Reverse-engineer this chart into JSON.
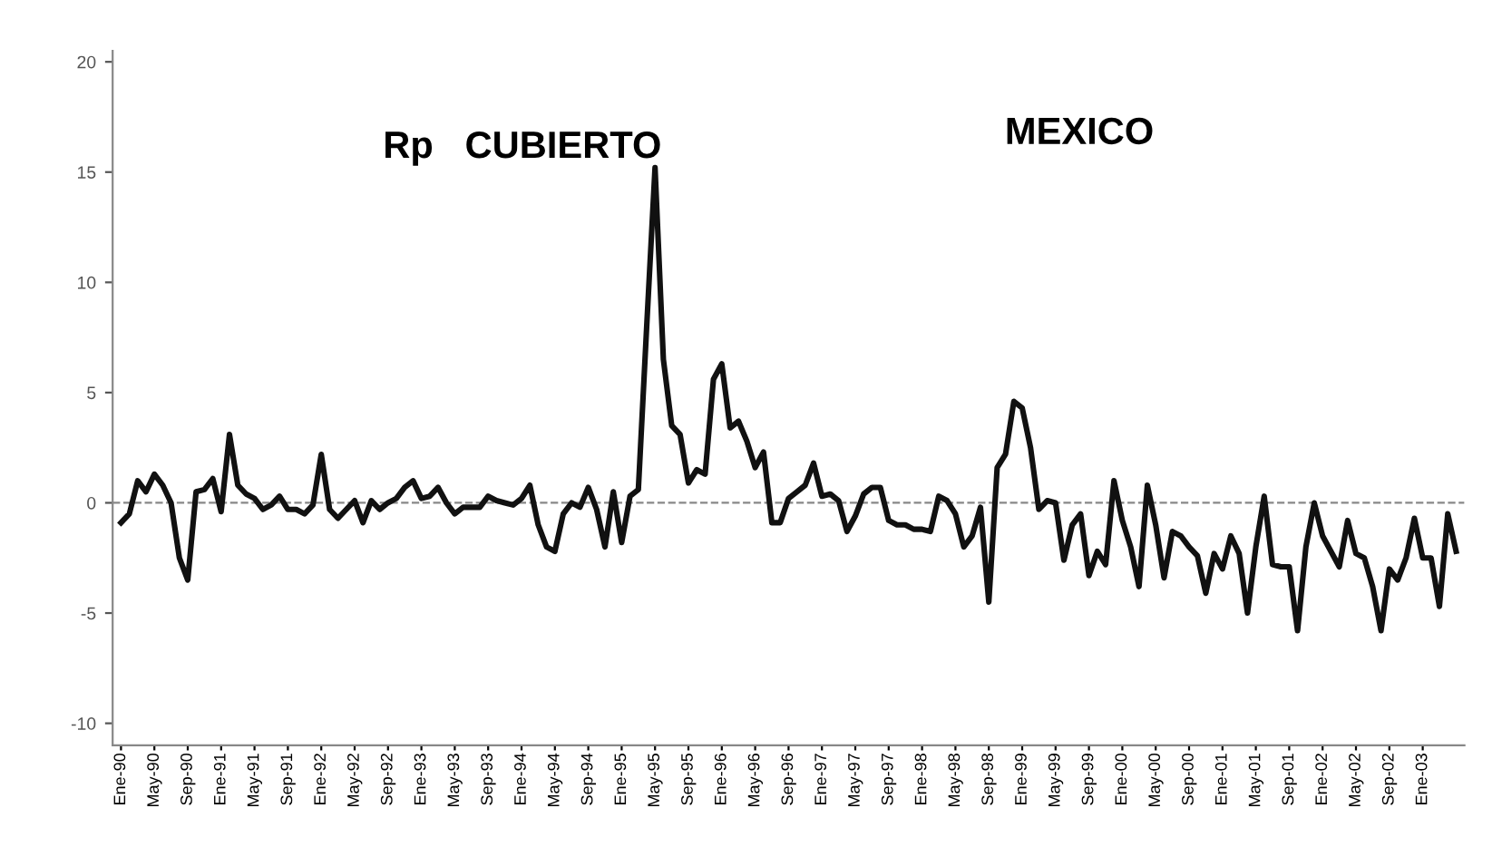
{
  "chart_data": {
    "type": "line",
    "annotations": [
      "Rp   CUBIERTO",
      "MEXICO"
    ],
    "categories": [
      "Ene-90",
      null,
      null,
      null,
      "May-90",
      null,
      null,
      null,
      "Sep-90",
      null,
      null,
      null,
      "Ene-91",
      null,
      null,
      null,
      "May-91",
      null,
      null,
      null,
      "Sep-91",
      null,
      null,
      null,
      "Ene-92",
      null,
      null,
      null,
      "May-92",
      null,
      null,
      null,
      "Sep-92",
      null,
      null,
      null,
      "Ene-93",
      null,
      null,
      null,
      "May-93",
      null,
      null,
      null,
      "Sep-93",
      null,
      null,
      null,
      "Ene-94",
      null,
      null,
      null,
      "May-94",
      null,
      null,
      null,
      "Sep-94",
      null,
      null,
      null,
      "Ene-95",
      null,
      null,
      null,
      "May-95",
      null,
      null,
      null,
      "Sep-95",
      null,
      null,
      null,
      "Ene-96",
      null,
      null,
      null,
      "May-96",
      null,
      null,
      null,
      "Sep-96",
      null,
      null,
      null,
      "Ene-97",
      null,
      null,
      null,
      "May-97",
      null,
      null,
      null,
      "Sep-97",
      null,
      null,
      null,
      "Ene-98",
      null,
      null,
      null,
      "May-98",
      null,
      null,
      null,
      "Sep-98",
      null,
      null,
      null,
      "Ene-99",
      null,
      null,
      null,
      "May-99",
      null,
      null,
      null,
      "Sep-99",
      null,
      null,
      null,
      "Ene-00",
      null,
      null,
      null,
      "May-00",
      null,
      null,
      null,
      "Sep-00",
      null,
      null,
      null,
      "Ene-01",
      null,
      null,
      null,
      "May-01",
      null,
      null,
      null,
      "Sep-01",
      null,
      null,
      null,
      "Ene-02",
      null,
      null,
      null,
      "May-02",
      null,
      null,
      null,
      "Sep-02",
      null,
      null,
      null,
      "Ene-03",
      null,
      null,
      null,
      null
    ],
    "series": [
      {
        "color": "#111111",
        "values": [
          -0.9,
          -0.5,
          1.0,
          0.5,
          1.3,
          0.8,
          0.0,
          -2.5,
          -3.5,
          0.5,
          0.6,
          1.1,
          -0.4,
          3.1,
          0.8,
          0.4,
          0.2,
          -0.3,
          -0.1,
          0.3,
          -0.3,
          -0.3,
          -0.5,
          -0.1,
          2.2,
          -0.3,
          -0.7,
          -0.3,
          0.1,
          -0.9,
          0.1,
          -0.3,
          0.0,
          0.2,
          0.7,
          1.0,
          0.2,
          0.3,
          0.7,
          0.0,
          -0.5,
          -0.2,
          -0.2,
          -0.2,
          0.3,
          0.1,
          0.0,
          -0.1,
          0.2,
          0.8,
          -1.0,
          -2.0,
          -2.2,
          -0.5,
          0.0,
          -0.2,
          0.7,
          -0.3,
          -2.0,
          0.5,
          -1.8,
          0.3,
          0.6,
          8.0,
          15.2,
          6.5,
          3.5,
          3.1,
          0.9,
          1.5,
          1.3,
          5.6,
          6.3,
          3.4,
          3.7,
          2.8,
          1.6,
          2.3,
          -0.9,
          -0.9,
          0.2,
          0.5,
          0.8,
          1.8,
          0.3,
          0.4,
          0.1,
          -1.3,
          -0.6,
          0.4,
          0.7,
          0.7,
          -0.8,
          -1.0,
          -1.0,
          -1.2,
          -1.2,
          -1.3,
          0.3,
          0.1,
          -0.5,
          -2.0,
          -1.5,
          -0.2,
          -4.5,
          1.6,
          2.2,
          4.6,
          4.3,
          2.5,
          -0.3,
          0.1,
          0.0,
          -2.6,
          -1.0,
          -0.5,
          -3.3,
          -2.2,
          -2.8,
          1.0,
          -0.8,
          -2.0,
          -3.8,
          0.8,
          -1.0,
          -3.4,
          -1.3,
          -1.5,
          -2.0,
          -2.4,
          -4.1,
          -2.3,
          -3.0,
          -1.5,
          -2.3,
          -5.0,
          -2.0,
          0.3,
          -2.8,
          -2.9,
          -2.9,
          -5.8,
          -2.0,
          0.0,
          -1.5,
          -2.2,
          -2.9,
          -0.8,
          -2.3,
          -2.5,
          -3.8,
          -5.8,
          -3.0,
          -3.5,
          -2.5,
          -0.7,
          -2.5,
          -2.5,
          -4.7,
          -0.5,
          -2.2
        ]
      }
    ],
    "ylim": [
      -11,
      20.5
    ],
    "yticks": [
      -10,
      -5,
      0,
      5,
      10,
      15,
      20
    ],
    "ref_lines": [
      {
        "axis": "y",
        "value": 0,
        "color": "#888888",
        "line_style": "dashed"
      }
    ],
    "grid": false,
    "legend": false,
    "marker": "none",
    "line_style": "solid"
  }
}
